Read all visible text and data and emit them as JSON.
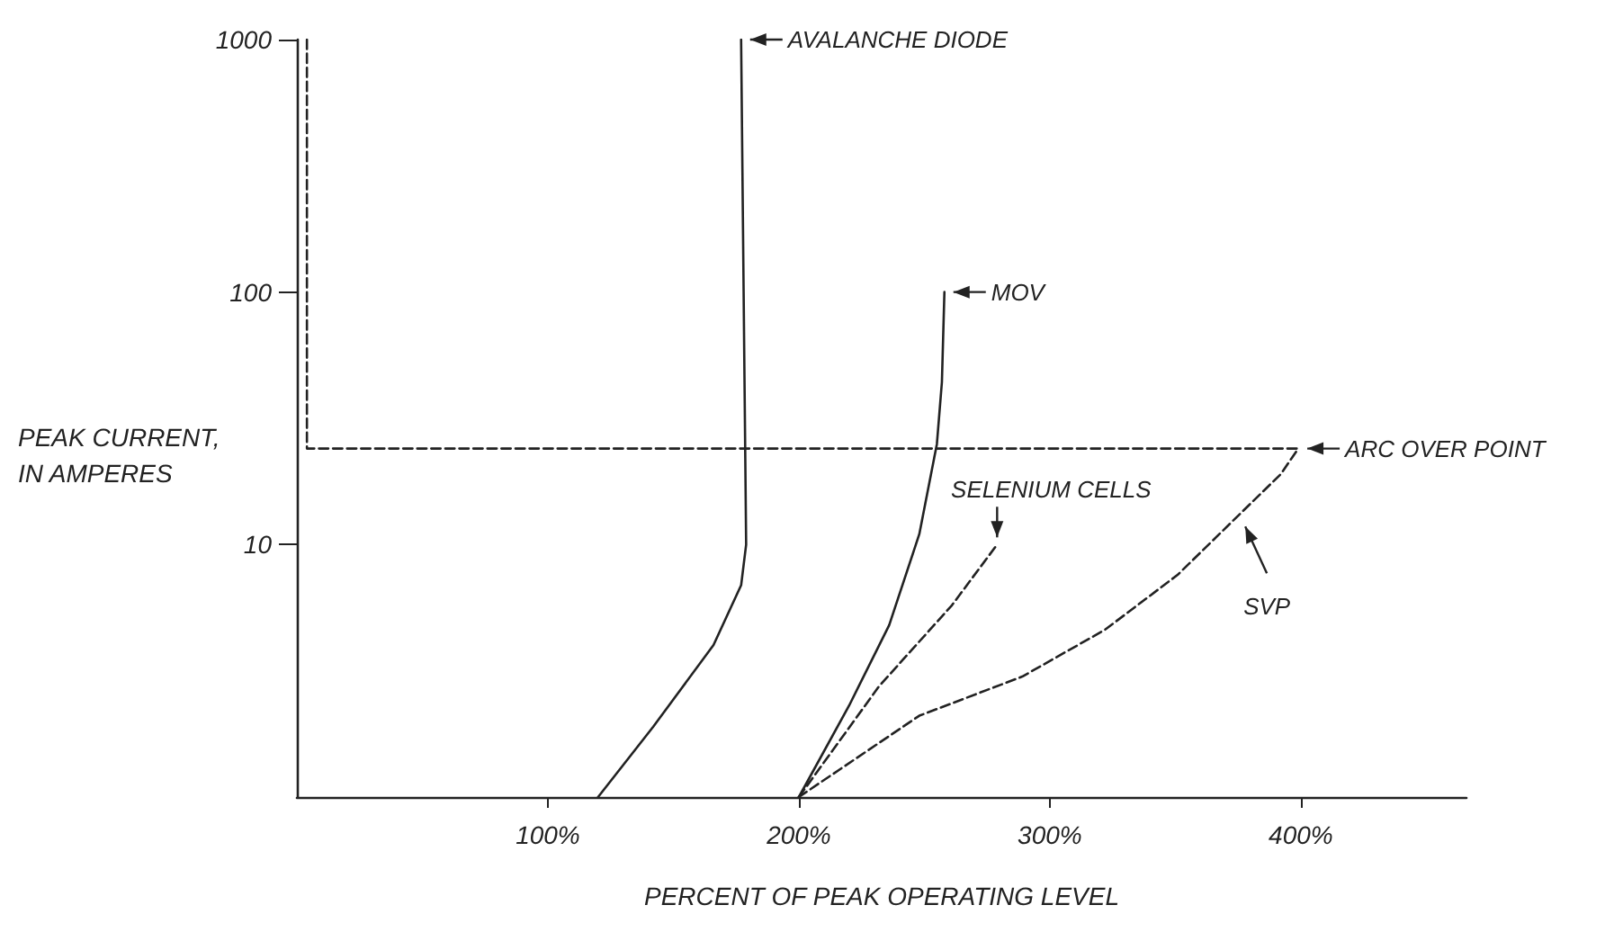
{
  "chart_data": {
    "type": "line",
    "xlabel": "PERCENT OF PEAK OPERATING LEVEL",
    "ylabel": "PEAK CURRENT, IN AMPERES",
    "xlim": [
      0,
      466
    ],
    "xticks": [
      {
        "value": 100,
        "label": "100%"
      },
      {
        "value": 200,
        "label": "200%"
      },
      {
        "value": 300,
        "label": "300%"
      },
      {
        "value": 400,
        "label": "400%"
      }
    ],
    "ylim": [
      1,
      1000
    ],
    "yticks": [
      10,
      100,
      1000
    ],
    "log": "y",
    "grid": false,
    "legend": false,
    "marker": "none",
    "series": [
      {
        "color": "#222222",
        "line_style": "solid",
        "x": [
          120,
          142,
          166,
          177,
          179,
          178,
          177
        ],
        "values": [
          1,
          1.9,
          4,
          6.9,
          10,
          100,
          1000
        ]
      },
      {
        "color": "#222222",
        "line_style": "solid",
        "x": [
          200,
          220,
          236,
          248,
          255,
          257,
          258
        ],
        "values": [
          1,
          2.3,
          4.8,
          11,
          25,
          44,
          100
        ]
      },
      {
        "color": "#222222",
        "line_style": "dashed",
        "x": [
          200,
          232,
          261,
          279
        ],
        "values": [
          1,
          2.75,
          5.75,
          10
        ]
      },
      {
        "color": "#222222",
        "line_style": "dashed",
        "x": [
          200,
          248,
          289,
          322,
          351,
          375,
          392,
          399
        ],
        "values": [
          1,
          2.1,
          3,
          4.6,
          7.6,
          13,
          19,
          24
        ]
      },
      {
        "color": "#222222",
        "line_style": "dashed",
        "x": [
          4,
          4,
          399
        ],
        "values": [
          1000,
          24,
          24
        ]
      }
    ],
    "annotations": [
      {
        "text": "AVALANCHE DIODE",
        "x": 177,
        "y": 1000
      },
      {
        "text": "MOV",
        "x": 258,
        "y": 100
      },
      {
        "text": "ARC OVER POINT",
        "x": 399,
        "y": 24
      },
      {
        "text": "SELENIUM CELLS",
        "x": 279,
        "y": 10
      },
      {
        "text": "SVP",
        "x": 375,
        "y": 13
      }
    ]
  }
}
